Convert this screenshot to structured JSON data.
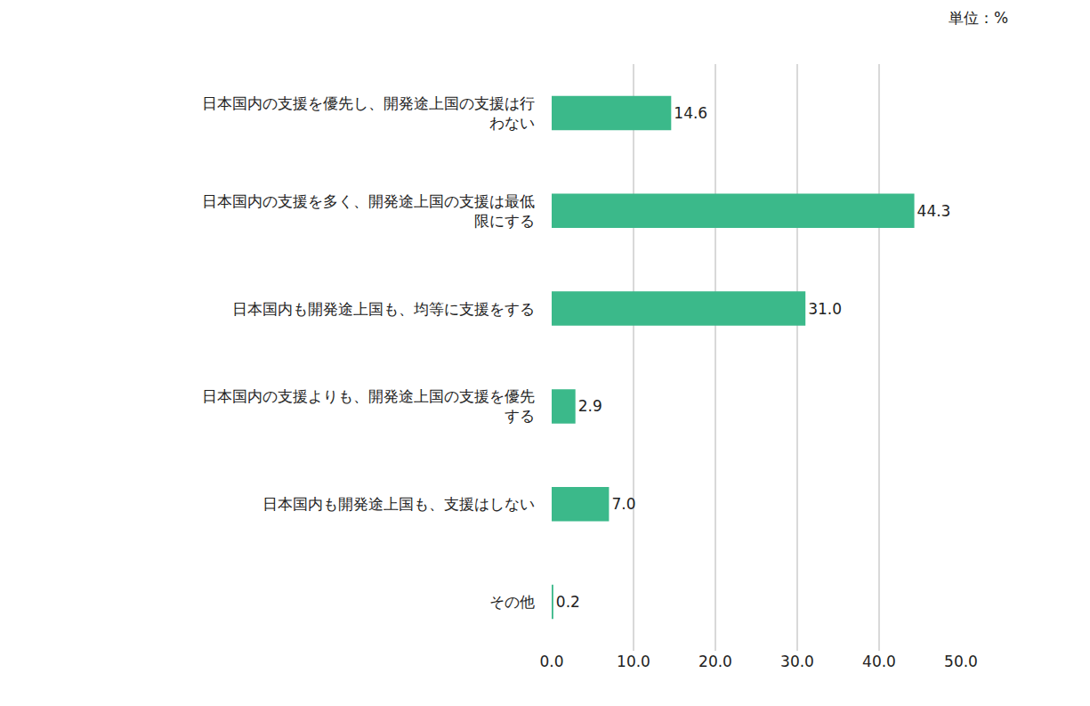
{
  "chart_data": {
    "type": "bar",
    "orientation": "horizontal",
    "annotation": "単位：%",
    "categories": [
      "日本国内の支援を優先し、開発途上国の支援は行わない",
      "日本国内の支援を多く、開発途上国の支援は最低限にする",
      "日本国内も開発途上国も、均等に支援をする",
      "日本国内の支援よりも、開発途上国の支援を優先する",
      "日本国内も開発途上国も、支援はしない",
      "その他"
    ],
    "values": [
      14.6,
      44.3,
      31.0,
      2.9,
      7.0,
      0.2
    ],
    "value_labels": [
      "14.6",
      "44.3",
      "31.0",
      "2.9",
      "7.0",
      "0.2"
    ],
    "data_labels": true,
    "color": "#3bb98a",
    "xlim": [
      0,
      50
    ],
    "xticks": [
      {
        "value": 0,
        "label": "0.0"
      },
      {
        "value": 10,
        "label": "10.0"
      },
      {
        "value": 20,
        "label": "20.0"
      },
      {
        "value": 30,
        "label": "30.0"
      },
      {
        "value": 40,
        "label": "40.0"
      },
      {
        "value": 50,
        "label": "50.0"
      }
    ],
    "grid": true
  }
}
